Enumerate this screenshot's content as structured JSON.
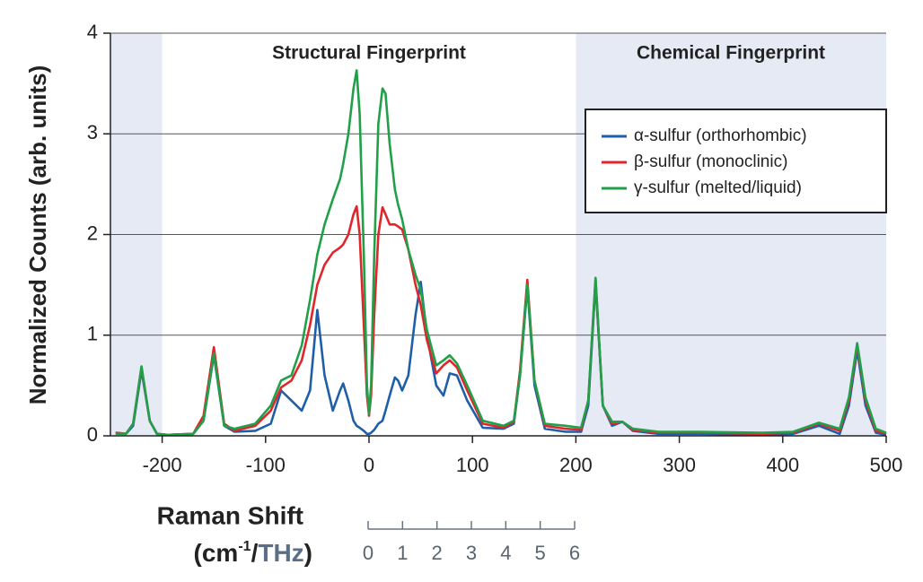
{
  "chart_data": {
    "type": "line",
    "y_label": "Normalized Counts (arb. units)",
    "x_label": {
      "line1": "Raman Shift",
      "line2": [
        "(cm",
        "-1",
        "/",
        "THz",
        ")"
      ]
    },
    "annotations": [
      "Structural Fingerprint",
      "Chemical Fingerprint"
    ],
    "shaded_regions": [
      [
        -250,
        -200
      ],
      [
        200,
        500
      ]
    ],
    "xlim": [
      -250,
      500
    ],
    "xticks": [
      -200,
      -100,
      0,
      100,
      200,
      300,
      400,
      500
    ],
    "ylim": [
      0,
      4
    ],
    "yticks": [
      0,
      1,
      2,
      3,
      4
    ],
    "grid": true,
    "legend": "upper right",
    "thz_axis": {
      "lim": [
        0,
        6
      ],
      "ticks": [
        0,
        1,
        2,
        3,
        4,
        5,
        6
      ]
    },
    "x": [
      -245,
      -235,
      -228,
      -220,
      -212,
      -205,
      -195,
      -170,
      -160,
      -150,
      -140,
      -130,
      -110,
      -95,
      -85,
      -75,
      -65,
      -57,
      -50,
      -43,
      -35,
      -28,
      -25,
      -20,
      -15,
      -12,
      -9,
      -5,
      -2,
      0,
      2,
      5,
      9,
      13,
      16,
      20,
      25,
      28,
      32,
      38,
      45,
      50,
      56,
      65,
      72,
      78,
      85,
      95,
      110,
      130,
      140,
      146,
      153,
      160,
      170,
      190,
      205,
      212,
      219,
      226,
      235,
      245,
      255,
      280,
      320,
      380,
      410,
      435,
      455,
      464,
      472,
      480,
      490,
      500
    ],
    "series": [
      {
        "name": "α-sulfur (orthorhombic)",
        "color": "#1f5fa8",
        "values": [
          0.03,
          0.02,
          0.1,
          0.65,
          0.15,
          0.02,
          0.01,
          0.02,
          0.15,
          0.8,
          0.1,
          0.04,
          0.05,
          0.12,
          0.45,
          0.35,
          0.25,
          0.45,
          1.25,
          0.6,
          0.25,
          0.45,
          0.52,
          0.35,
          0.15,
          0.1,
          0.08,
          0.05,
          0.02,
          0.02,
          0.03,
          0.06,
          0.12,
          0.15,
          0.25,
          0.4,
          0.58,
          0.55,
          0.45,
          0.6,
          1.2,
          1.53,
          1.0,
          0.5,
          0.4,
          0.62,
          0.6,
          0.35,
          0.08,
          0.07,
          0.12,
          0.6,
          1.48,
          0.5,
          0.07,
          0.04,
          0.04,
          0.3,
          1.52,
          0.3,
          0.1,
          0.14,
          0.05,
          0.02,
          0.02,
          0.01,
          0.02,
          0.1,
          0.02,
          0.3,
          0.85,
          0.3,
          0.03,
          0.01
        ]
      },
      {
        "name": "β-sulfur (monoclinic)",
        "color": "#e0262b",
        "values": [
          0.03,
          0.02,
          0.12,
          0.68,
          0.15,
          0.02,
          0.01,
          0.02,
          0.2,
          0.88,
          0.12,
          0.05,
          0.1,
          0.25,
          0.48,
          0.55,
          0.75,
          1.1,
          1.5,
          1.7,
          1.82,
          1.87,
          1.9,
          2.0,
          2.2,
          2.28,
          2.0,
          1.1,
          0.4,
          0.2,
          0.4,
          1.2,
          2.0,
          2.27,
          2.2,
          2.1,
          2.1,
          2.08,
          2.05,
          1.85,
          1.5,
          1.3,
          0.95,
          0.62,
          0.7,
          0.75,
          0.68,
          0.45,
          0.12,
          0.08,
          0.14,
          0.65,
          1.55,
          0.55,
          0.1,
          0.07,
          0.06,
          0.35,
          1.55,
          0.3,
          0.12,
          0.14,
          0.06,
          0.03,
          0.03,
          0.02,
          0.03,
          0.12,
          0.05,
          0.35,
          0.9,
          0.35,
          0.05,
          0.02
        ]
      },
      {
        "name": "γ-sulfur (melted/liquid)",
        "color": "#21a04a",
        "values": [
          0.02,
          0.02,
          0.12,
          0.69,
          0.15,
          0.02,
          0.01,
          0.02,
          0.15,
          0.82,
          0.1,
          0.07,
          0.12,
          0.3,
          0.55,
          0.6,
          0.9,
          1.35,
          1.8,
          2.1,
          2.35,
          2.55,
          2.7,
          3.0,
          3.45,
          3.63,
          3.2,
          1.8,
          0.5,
          0.22,
          0.5,
          1.8,
          3.1,
          3.45,
          3.4,
          2.9,
          2.45,
          2.3,
          2.15,
          1.85,
          1.6,
          1.45,
          1.05,
          0.7,
          0.75,
          0.8,
          0.72,
          0.5,
          0.15,
          0.1,
          0.15,
          0.6,
          1.5,
          0.55,
          0.12,
          0.1,
          0.08,
          0.35,
          1.57,
          0.3,
          0.14,
          0.14,
          0.07,
          0.04,
          0.04,
          0.03,
          0.04,
          0.13,
          0.07,
          0.38,
          0.92,
          0.38,
          0.07,
          0.03
        ]
      }
    ]
  }
}
